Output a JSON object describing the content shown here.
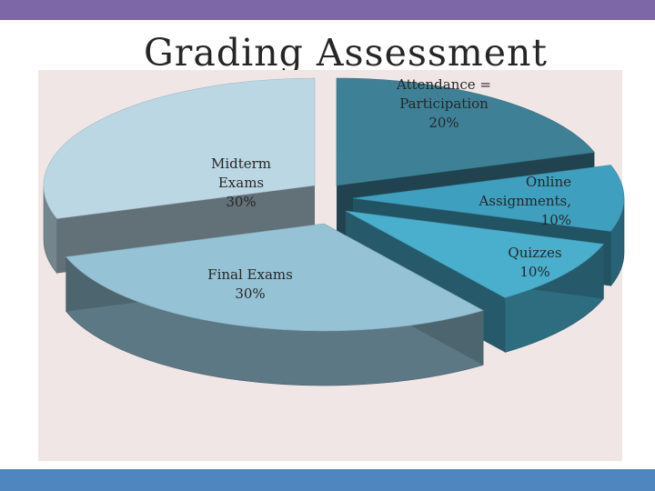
{
  "title": "Grading Assessment",
  "chart_data": {
    "type": "pie",
    "title": "Grading Assessment",
    "slices": [
      {
        "label_lines": [
          "Attendance =",
          "Participation",
          "20%"
        ],
        "value": 20,
        "color": "#3e8197"
      },
      {
        "label_lines": [
          "Online",
          "Assignments,",
          "10%"
        ],
        "value": 10,
        "color": "#3f9fbf"
      },
      {
        "label_lines": [
          "Quizzes",
          "10%"
        ],
        "value": 10,
        "color": "#4aaecd"
      },
      {
        "label_lines": [
          "Final Exams",
          "30%"
        ],
        "value": 30,
        "color": "#95c2d5"
      },
      {
        "label_lines": [
          "Midterm",
          "Exams",
          "30%"
        ],
        "value": 30,
        "color": "#bcd7e4"
      }
    ]
  }
}
